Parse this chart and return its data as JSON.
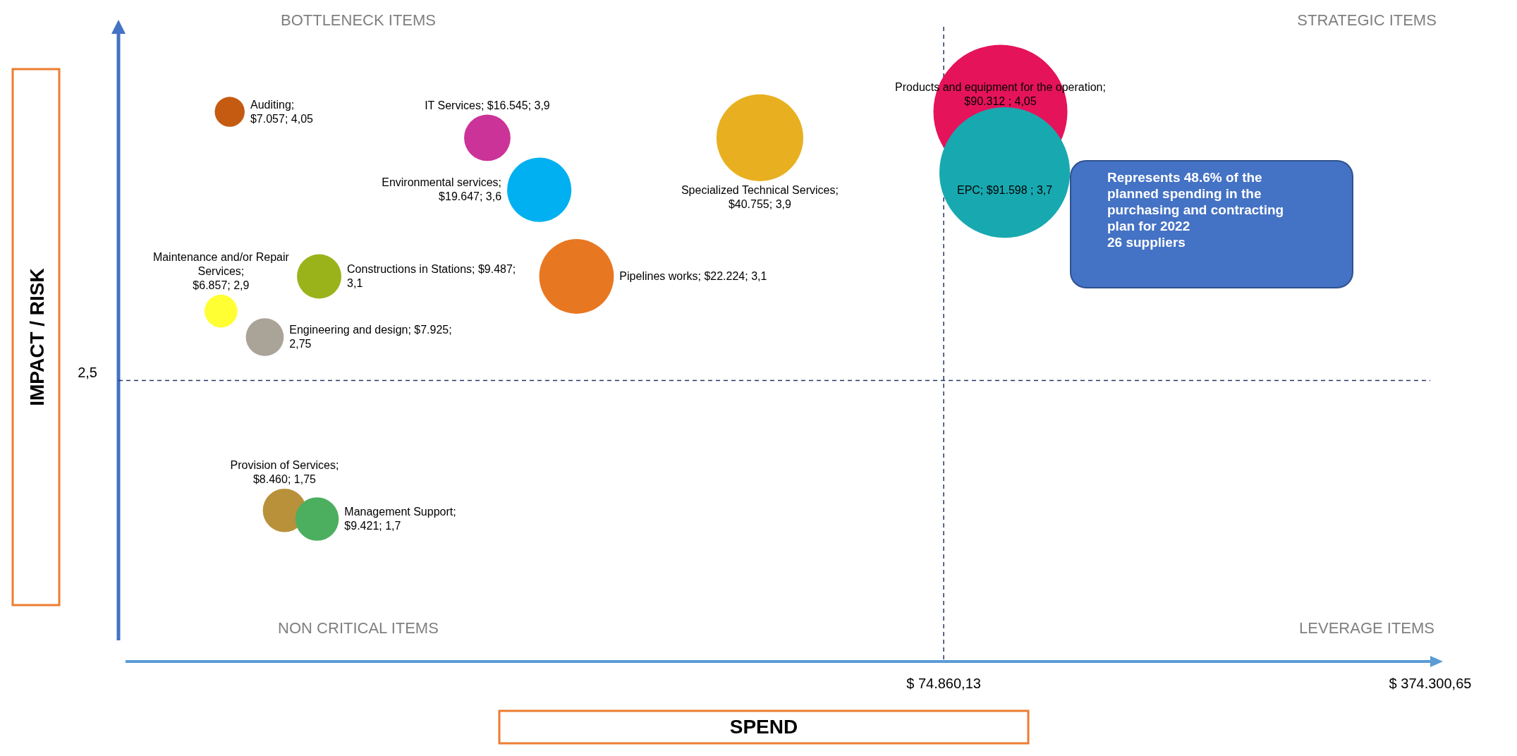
{
  "chart_data": {
    "type": "bubble",
    "xlabel": "SPEND",
    "ylabel": "IMPACT /  RISK",
    "log": "x",
    "xlim": [
      5000,
      374300.65
    ],
    "xticks": [
      {
        "value": 74860.13,
        "label": "$ 74.860,13"
      },
      {
        "value": 374300.65,
        "label": "$ 374.300,65"
      }
    ],
    "ylim": [
      1,
      4.5
    ],
    "ref_lines": [
      {
        "axis": "x",
        "value": 74860.13,
        "label": null,
        "color": "#203864",
        "line_style": "dashed"
      },
      {
        "axis": "y",
        "value": 2.5,
        "label": "2,5",
        "color": "#203864",
        "line_style": "dashed"
      }
    ],
    "annotations": [
      "BOTTLENECK ITEMS",
      "STRATEGIC ITEMS",
      "NON CRITICAL ITEMS",
      "LEVERAGE ITEMS",
      "Represents 48.6% of the\nplanned spending in the\npurchasing and contracting\nplan for 2022\n26 suppliers"
    ],
    "series": [
      {
        "x": [
          7057,
          16545,
          19647,
          40755,
          22224,
          9487,
          6857,
          7925,
          8460,
          9421,
          90312,
          91598
        ],
        "values": [
          4.05,
          3.9,
          3.6,
          3.9,
          3.1,
          3.1,
          2.9,
          2.75,
          1.75,
          1.7,
          4.05,
          3.7
        ],
        "sizes": [
          0.05,
          0.12,
          0.23,
          0.42,
          0.31,
          0.11,
          0.06,
          0.08,
          0.105,
          0.105,
          1,
          0.95
        ],
        "colors": [
          "#c55a11",
          "#cc3399",
          "#00b0f0",
          "#e8b020",
          "#e87722",
          "#9bb31a",
          "#ffff33",
          "#aaa397",
          "#b8913a",
          "#4caf60",
          "#e5135a",
          "#18a9b0"
        ],
        "value_labels": [
          "Auditing;\n$7.057; 4,05",
          "IT Services; $16.545;  3,9",
          "Environmental services;\n$19.647;  3,6",
          "Specialized Technical Services;\n$40.755;  3,9",
          "Pipelines works; $22.224;   3,1",
          "Constructions in Stations; $9.487;\n3,1",
          "Maintenance and/or Repair\nServices;\n$6.857; 2,9",
          "Engineering and design; $7.925;\n2,75",
          "Provision of Services;\n$8.460;  1,75",
          "Management Support;\n$9.421;  1,7",
          "Products and equipment for the operation;\n$90.312 ;  4,05",
          "EPC; $91.598 ;  3,7"
        ]
      }
    ]
  }
}
